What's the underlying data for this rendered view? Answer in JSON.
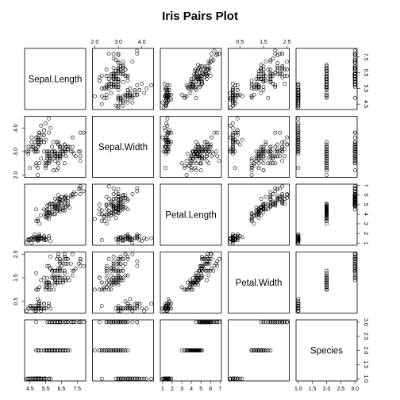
{
  "chart_data": {
    "type": "scatter",
    "title": "Iris Pairs Plot",
    "variables": [
      "Sepal.Length",
      "Sepal.Width",
      "Petal.Length",
      "Petal.Width",
      "Species"
    ],
    "ranges": [
      [
        4.3,
        7.9
      ],
      [
        2.0,
        4.4
      ],
      [
        1.0,
        6.9
      ],
      [
        0.1,
        2.5
      ],
      [
        1,
        3
      ]
    ],
    "ticks": [
      {
        "values": [
          4.5,
          5.5,
          6.5,
          7.5
        ],
        "labels": [
          "4.5",
          "5.5",
          "6.5",
          "7.5"
        ]
      },
      {
        "values": [
          2.0,
          3.0,
          4.0
        ],
        "labels": [
          "2.0",
          "3.0",
          "4.0"
        ]
      },
      {
        "values": [
          1,
          2,
          3,
          4,
          5,
          6,
          7
        ],
        "labels": [
          "1",
          "2",
          "3",
          "4",
          "5",
          "6",
          "7"
        ]
      },
      {
        "values": [
          0.5,
          1.5,
          2.5
        ],
        "labels": [
          "0.5",
          "1.5",
          "2.5"
        ]
      },
      {
        "values": [
          1.0,
          1.5,
          2.0,
          2.5,
          3.0
        ],
        "labels": [
          "1.0",
          "1.5",
          "2.0",
          "2.5",
          "3.0"
        ]
      }
    ],
    "species_codes": {
      "setosa": 1,
      "versicolor": 2,
      "virginica": 3
    },
    "grid": false,
    "legend": "none",
    "observations": [
      [
        5.1,
        3.5,
        1.4,
        0.2,
        1
      ],
      [
        4.9,
        3.0,
        1.4,
        0.2,
        1
      ],
      [
        4.7,
        3.2,
        1.3,
        0.2,
        1
      ],
      [
        4.6,
        3.1,
        1.5,
        0.2,
        1
      ],
      [
        5.0,
        3.6,
        1.4,
        0.2,
        1
      ],
      [
        5.4,
        3.9,
        1.7,
        0.4,
        1
      ],
      [
        4.6,
        3.4,
        1.4,
        0.3,
        1
      ],
      [
        5.0,
        3.4,
        1.5,
        0.2,
        1
      ],
      [
        4.4,
        2.9,
        1.4,
        0.2,
        1
      ],
      [
        4.9,
        3.1,
        1.5,
        0.1,
        1
      ],
      [
        5.4,
        3.7,
        1.5,
        0.2,
        1
      ],
      [
        4.8,
        3.4,
        1.6,
        0.2,
        1
      ],
      [
        4.8,
        3.0,
        1.4,
        0.1,
        1
      ],
      [
        4.3,
        3.0,
        1.1,
        0.1,
        1
      ],
      [
        5.8,
        4.0,
        1.2,
        0.2,
        1
      ],
      [
        5.7,
        4.4,
        1.5,
        0.4,
        1
      ],
      [
        5.4,
        3.9,
        1.3,
        0.4,
        1
      ],
      [
        5.1,
        3.5,
        1.4,
        0.3,
        1
      ],
      [
        5.7,
        3.8,
        1.7,
        0.3,
        1
      ],
      [
        5.1,
        3.8,
        1.5,
        0.3,
        1
      ],
      [
        5.4,
        3.4,
        1.7,
        0.2,
        1
      ],
      [
        5.1,
        3.7,
        1.5,
        0.4,
        1
      ],
      [
        4.6,
        3.6,
        1.0,
        0.2,
        1
      ],
      [
        5.1,
        3.3,
        1.7,
        0.5,
        1
      ],
      [
        4.8,
        3.4,
        1.9,
        0.2,
        1
      ],
      [
        5.0,
        3.0,
        1.6,
        0.2,
        1
      ],
      [
        5.0,
        3.4,
        1.6,
        0.4,
        1
      ],
      [
        5.2,
        3.5,
        1.5,
        0.2,
        1
      ],
      [
        5.2,
        3.4,
        1.4,
        0.2,
        1
      ],
      [
        4.7,
        3.2,
        1.6,
        0.2,
        1
      ],
      [
        4.8,
        3.1,
        1.6,
        0.2,
        1
      ],
      [
        5.4,
        3.4,
        1.5,
        0.4,
        1
      ],
      [
        5.2,
        4.1,
        1.5,
        0.1,
        1
      ],
      [
        5.5,
        4.2,
        1.4,
        0.2,
        1
      ],
      [
        4.9,
        3.1,
        1.5,
        0.2,
        1
      ],
      [
        5.0,
        3.2,
        1.2,
        0.2,
        1
      ],
      [
        5.5,
        3.5,
        1.3,
        0.2,
        1
      ],
      [
        4.9,
        3.6,
        1.4,
        0.1,
        1
      ],
      [
        4.4,
        3.0,
        1.3,
        0.2,
        1
      ],
      [
        5.1,
        3.4,
        1.5,
        0.2,
        1
      ],
      [
        5.0,
        3.5,
        1.3,
        0.3,
        1
      ],
      [
        4.5,
        2.3,
        1.3,
        0.3,
        1
      ],
      [
        4.4,
        3.2,
        1.3,
        0.2,
        1
      ],
      [
        5.0,
        3.5,
        1.6,
        0.6,
        1
      ],
      [
        5.1,
        3.8,
        1.9,
        0.4,
        1
      ],
      [
        4.8,
        3.0,
        1.4,
        0.3,
        1
      ],
      [
        5.1,
        3.8,
        1.6,
        0.2,
        1
      ],
      [
        4.6,
        3.2,
        1.4,
        0.2,
        1
      ],
      [
        5.3,
        3.7,
        1.5,
        0.2,
        1
      ],
      [
        5.0,
        3.3,
        1.4,
        0.2,
        1
      ],
      [
        7.0,
        3.2,
        4.7,
        1.4,
        2
      ],
      [
        6.4,
        3.2,
        4.5,
        1.5,
        2
      ],
      [
        6.9,
        3.1,
        4.9,
        1.5,
        2
      ],
      [
        5.5,
        2.3,
        4.0,
        1.3,
        2
      ],
      [
        6.5,
        2.8,
        4.6,
        1.5,
        2
      ],
      [
        5.7,
        2.8,
        4.5,
        1.3,
        2
      ],
      [
        6.3,
        3.3,
        4.7,
        1.6,
        2
      ],
      [
        4.9,
        2.4,
        3.3,
        1.0,
        2
      ],
      [
        6.6,
        2.9,
        4.6,
        1.3,
        2
      ],
      [
        5.2,
        2.7,
        3.9,
        1.4,
        2
      ],
      [
        5.0,
        2.0,
        3.5,
        1.0,
        2
      ],
      [
        5.9,
        3.0,
        4.2,
        1.5,
        2
      ],
      [
        6.0,
        2.2,
        4.0,
        1.0,
        2
      ],
      [
        6.1,
        2.9,
        4.7,
        1.4,
        2
      ],
      [
        5.6,
        2.9,
        3.6,
        1.3,
        2
      ],
      [
        6.7,
        3.1,
        4.4,
        1.4,
        2
      ],
      [
        5.6,
        3.0,
        4.5,
        1.5,
        2
      ],
      [
        5.8,
        2.7,
        4.1,
        1.0,
        2
      ],
      [
        6.2,
        2.2,
        4.5,
        1.5,
        2
      ],
      [
        5.6,
        2.5,
        3.9,
        1.1,
        2
      ],
      [
        5.9,
        3.2,
        4.8,
        1.8,
        2
      ],
      [
        6.1,
        2.8,
        4.0,
        1.3,
        2
      ],
      [
        6.3,
        2.5,
        4.9,
        1.5,
        2
      ],
      [
        6.1,
        2.8,
        4.7,
        1.2,
        2
      ],
      [
        6.4,
        2.9,
        4.3,
        1.3,
        2
      ],
      [
        6.6,
        3.0,
        4.4,
        1.4,
        2
      ],
      [
        6.8,
        2.8,
        4.8,
        1.4,
        2
      ],
      [
        6.7,
        3.0,
        5.0,
        1.7,
        2
      ],
      [
        6.0,
        2.9,
        4.5,
        1.5,
        2
      ],
      [
        5.7,
        2.6,
        3.5,
        1.0,
        2
      ],
      [
        5.5,
        2.4,
        3.8,
        1.1,
        2
      ],
      [
        5.5,
        2.4,
        3.7,
        1.0,
        2
      ],
      [
        5.8,
        2.7,
        3.9,
        1.2,
        2
      ],
      [
        6.0,
        2.7,
        5.1,
        1.6,
        2
      ],
      [
        5.4,
        3.0,
        4.5,
        1.5,
        2
      ],
      [
        6.0,
        3.4,
        4.5,
        1.6,
        2
      ],
      [
        6.7,
        3.1,
        4.7,
        1.5,
        2
      ],
      [
        6.3,
        2.3,
        4.4,
        1.3,
        2
      ],
      [
        5.6,
        3.0,
        4.1,
        1.3,
        2
      ],
      [
        5.5,
        2.5,
        4.0,
        1.3,
        2
      ],
      [
        5.5,
        2.6,
        4.4,
        1.2,
        2
      ],
      [
        6.1,
        3.0,
        4.6,
        1.4,
        2
      ],
      [
        5.8,
        2.6,
        4.0,
        1.2,
        2
      ],
      [
        5.0,
        2.3,
        3.3,
        1.0,
        2
      ],
      [
        5.6,
        2.7,
        4.2,
        1.3,
        2
      ],
      [
        5.7,
        3.0,
        4.2,
        1.2,
        2
      ],
      [
        5.7,
        2.9,
        4.2,
        1.3,
        2
      ],
      [
        6.2,
        2.9,
        4.3,
        1.3,
        2
      ],
      [
        5.1,
        2.5,
        3.0,
        1.1,
        2
      ],
      [
        5.7,
        2.8,
        4.1,
        1.3,
        2
      ],
      [
        6.3,
        3.3,
        6.0,
        2.5,
        3
      ],
      [
        5.8,
        2.7,
        5.1,
        1.9,
        3
      ],
      [
        7.1,
        3.0,
        5.9,
        2.1,
        3
      ],
      [
        6.3,
        2.9,
        5.6,
        1.8,
        3
      ],
      [
        6.5,
        3.0,
        5.8,
        2.2,
        3
      ],
      [
        7.6,
        3.0,
        6.6,
        2.1,
        3
      ],
      [
        4.9,
        2.5,
        4.5,
        1.7,
        3
      ],
      [
        7.3,
        2.9,
        6.3,
        1.8,
        3
      ],
      [
        6.7,
        2.5,
        5.8,
        1.8,
        3
      ],
      [
        7.2,
        3.6,
        6.1,
        2.5,
        3
      ],
      [
        6.5,
        3.2,
        5.1,
        2.0,
        3
      ],
      [
        6.4,
        2.7,
        5.3,
        1.9,
        3
      ],
      [
        6.8,
        3.0,
        5.5,
        2.1,
        3
      ],
      [
        5.7,
        2.5,
        5.0,
        2.0,
        3
      ],
      [
        5.8,
        2.8,
        5.1,
        2.4,
        3
      ],
      [
        6.4,
        3.2,
        5.3,
        2.3,
        3
      ],
      [
        6.5,
        3.0,
        5.5,
        1.8,
        3
      ],
      [
        7.7,
        3.8,
        6.7,
        2.2,
        3
      ],
      [
        7.7,
        2.6,
        6.9,
        2.3,
        3
      ],
      [
        6.0,
        2.2,
        5.0,
        1.5,
        3
      ],
      [
        6.9,
        3.2,
        5.7,
        2.3,
        3
      ],
      [
        5.6,
        2.8,
        4.9,
        2.0,
        3
      ],
      [
        7.7,
        2.8,
        6.7,
        2.0,
        3
      ],
      [
        6.3,
        2.7,
        4.9,
        1.8,
        3
      ],
      [
        6.7,
        3.3,
        5.7,
        2.1,
        3
      ],
      [
        7.2,
        3.2,
        6.0,
        1.8,
        3
      ],
      [
        6.2,
        2.8,
        4.8,
        1.8,
        3
      ],
      [
        6.1,
        3.0,
        4.9,
        1.8,
        3
      ],
      [
        6.4,
        2.8,
        5.6,
        2.1,
        3
      ],
      [
        7.2,
        3.0,
        5.8,
        1.6,
        3
      ],
      [
        7.4,
        2.8,
        6.1,
        1.9,
        3
      ],
      [
        7.9,
        3.8,
        6.4,
        2.0,
        3
      ],
      [
        6.4,
        2.8,
        5.6,
        2.2,
        3
      ],
      [
        6.3,
        2.8,
        5.1,
        1.5,
        3
      ],
      [
        6.1,
        2.6,
        5.6,
        1.4,
        3
      ],
      [
        7.7,
        3.0,
        6.1,
        2.3,
        3
      ],
      [
        6.3,
        3.4,
        5.6,
        2.4,
        3
      ],
      [
        6.4,
        3.1,
        5.5,
        1.8,
        3
      ],
      [
        6.0,
        3.0,
        4.8,
        1.8,
        3
      ],
      [
        6.9,
        3.1,
        5.4,
        2.1,
        3
      ],
      [
        6.7,
        3.1,
        5.6,
        2.4,
        3
      ],
      [
        6.9,
        3.1,
        5.1,
        2.3,
        3
      ],
      [
        5.8,
        2.7,
        5.1,
        1.9,
        3
      ],
      [
        6.8,
        3.2,
        5.9,
        2.3,
        3
      ],
      [
        6.7,
        3.3,
        5.7,
        2.5,
        3
      ],
      [
        6.7,
        3.0,
        5.2,
        2.3,
        3
      ],
      [
        6.3,
        2.5,
        5.0,
        1.9,
        3
      ],
      [
        6.5,
        3.0,
        5.2,
        2.0,
        3
      ],
      [
        6.2,
        3.4,
        5.4,
        2.3,
        3
      ],
      [
        5.9,
        3.0,
        5.1,
        1.8,
        3
      ]
    ]
  }
}
